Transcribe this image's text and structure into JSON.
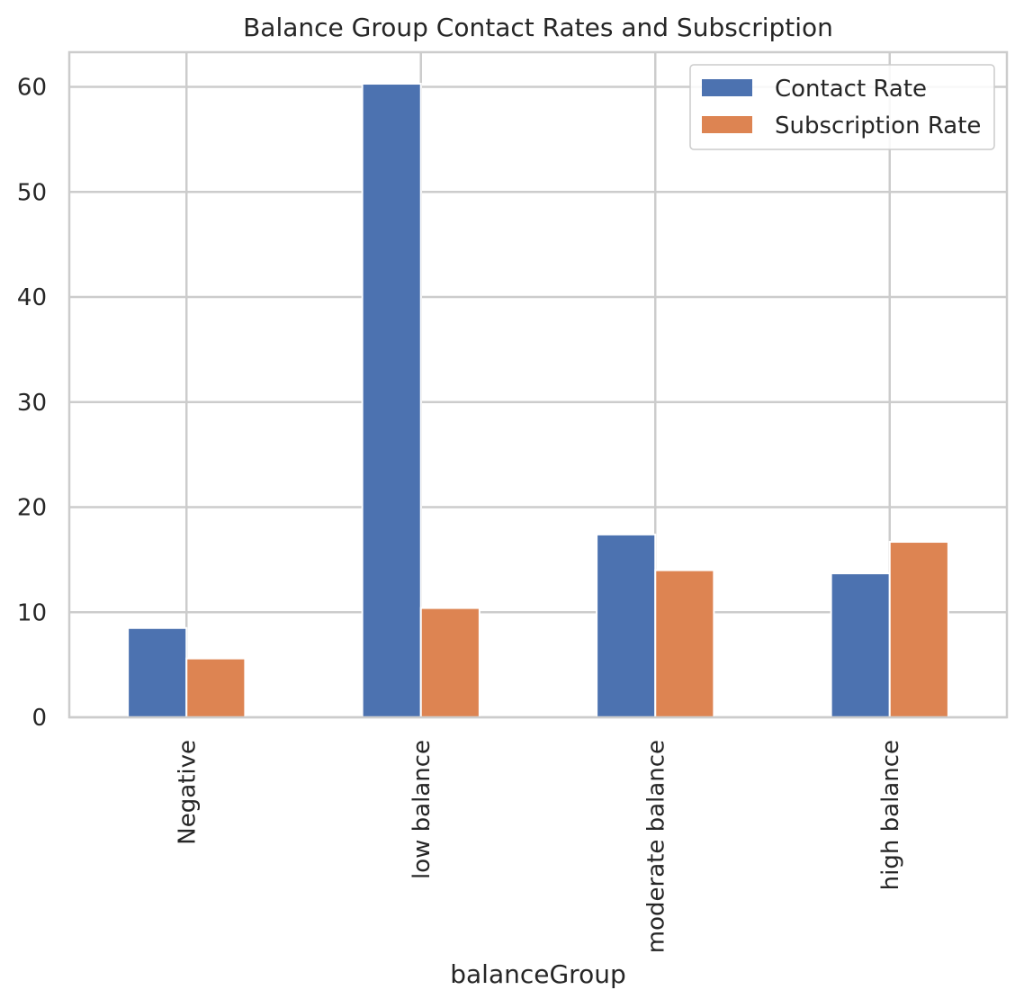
{
  "chart_data": {
    "type": "bar",
    "title": "Balance Group Contact Rates and Subscription",
    "xlabel": "balanceGroup",
    "ylabel": "",
    "categories": [
      "Negative",
      "low balance",
      "moderate balance",
      "high balance"
    ],
    "series": [
      {
        "name": "Contact Rate",
        "color": "#4c72b0",
        "values": [
          8.5,
          60.3,
          17.4,
          13.7
        ]
      },
      {
        "name": "Subscription Rate",
        "color": "#dd8452",
        "values": [
          5.6,
          10.4,
          14.0,
          16.7
        ]
      }
    ],
    "ylim": [
      0,
      63.3
    ],
    "yticks": [
      0,
      10,
      20,
      30,
      40,
      50,
      60
    ],
    "grid": true,
    "legend_position": "top-right",
    "style": "seaborn-whitegrid"
  }
}
